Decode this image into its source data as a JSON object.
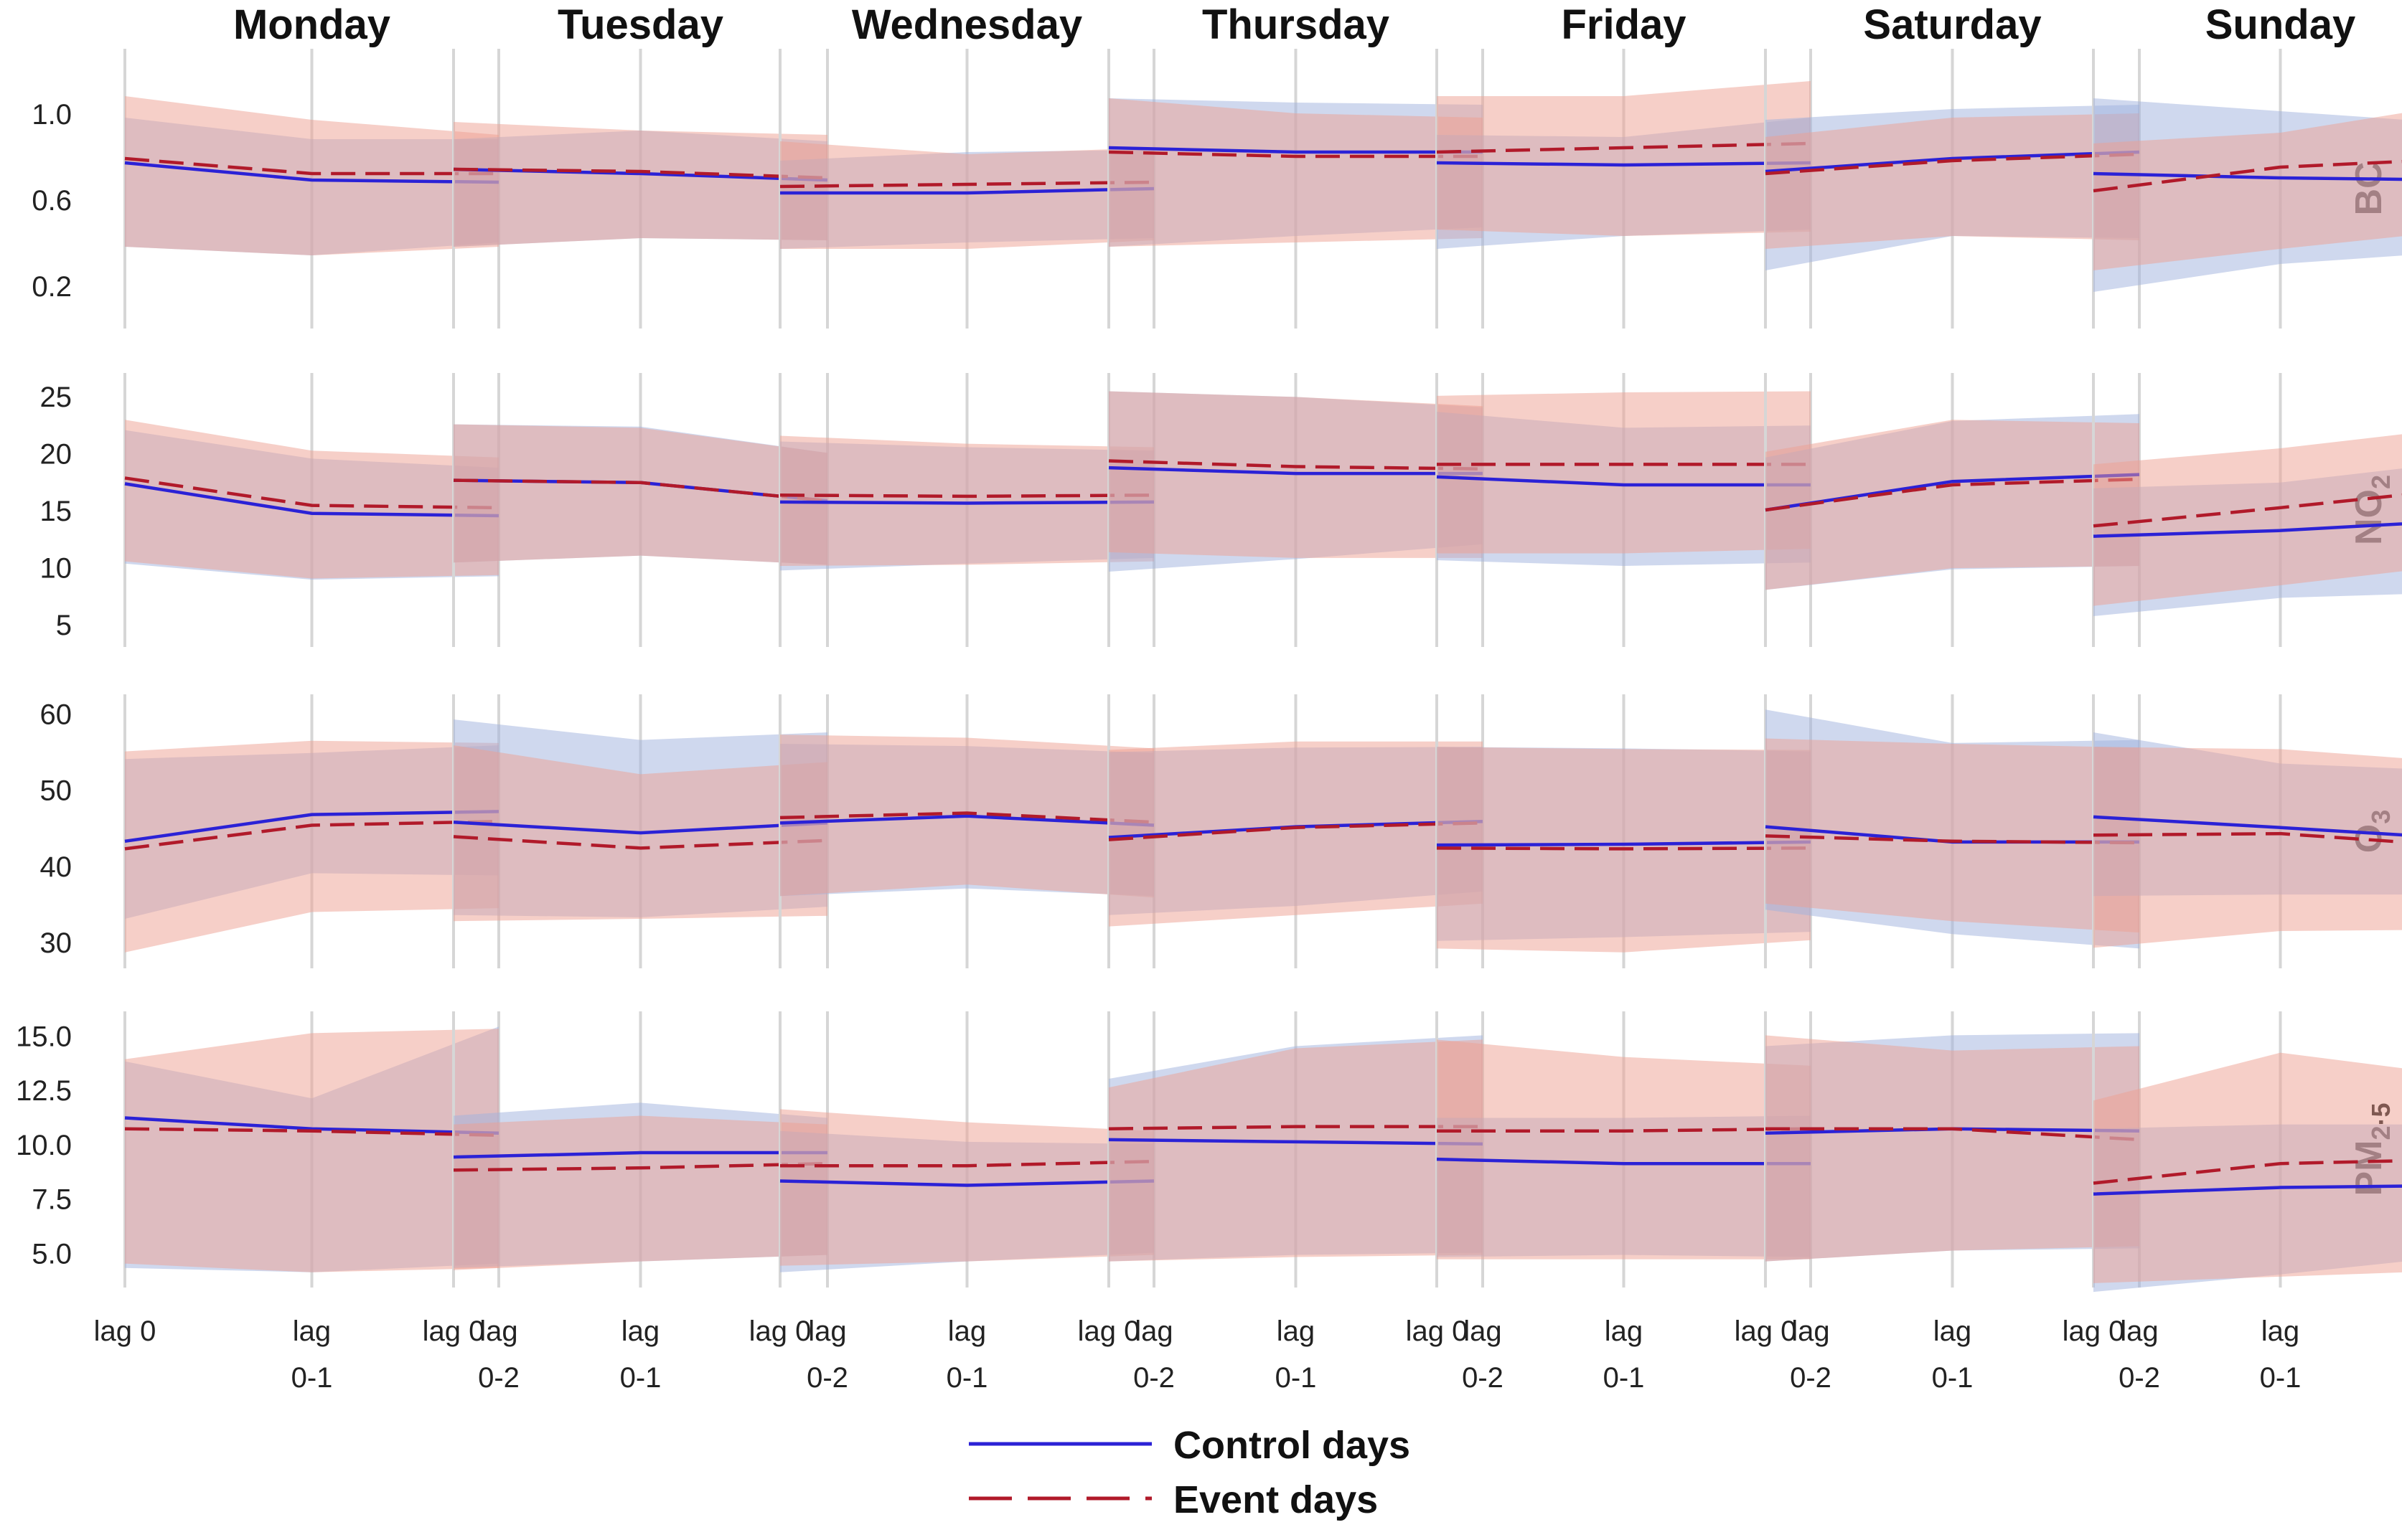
{
  "chart_data": {
    "type": "line",
    "days": [
      "Monday",
      "Tuesday",
      "Wednesday",
      "Thursday",
      "Friday",
      "Saturday",
      "Sunday"
    ],
    "x_ticks": [
      [
        "lag 0"
      ],
      [
        "lag",
        "0-1"
      ],
      [
        "lag",
        "0-2"
      ]
    ],
    "legend_position": "bottom-center",
    "series_names": {
      "control": "Control days",
      "event": "Event days"
    },
    "colors": {
      "control_line": "#2b22d6",
      "event_line": "#b11a2a",
      "control_band": "#9fb1dd",
      "event_band": "#eea091",
      "grid": "#d6d6d6"
    },
    "pollutants": [
      {
        "name": "BC",
        "sub": "",
        "ylim": [
          0.0,
          1.3
        ],
        "ticks": [
          0.2,
          0.6,
          1.0
        ],
        "tick_decimals": 1,
        "days": [
          {
            "control": [
              0.77,
              0.69,
              0.68
            ],
            "control_lo": [
              0.38,
              0.34,
              0.4
            ],
            "control_hi": [
              0.98,
              0.88,
              0.88
            ],
            "event": [
              0.79,
              0.72,
              0.72
            ],
            "event_lo": [
              0.38,
              0.34,
              0.38
            ],
            "event_hi": [
              1.08,
              0.97,
              0.9
            ]
          },
          {
            "control": [
              0.74,
              0.72,
              0.69
            ],
            "control_lo": [
              0.38,
              0.42,
              0.41
            ],
            "control_hi": [
              0.88,
              0.92,
              0.87
            ],
            "event": [
              0.74,
              0.73,
              0.7
            ],
            "event_lo": [
              0.38,
              0.42,
              0.41
            ],
            "event_hi": [
              0.96,
              0.92,
              0.9
            ]
          },
          {
            "control": [
              0.63,
              0.63,
              0.65
            ],
            "control_lo": [
              0.37,
              0.4,
              0.42
            ],
            "control_hi": [
              0.78,
              0.82,
              0.83
            ],
            "event": [
              0.66,
              0.67,
              0.68
            ],
            "event_lo": [
              0.37,
              0.37,
              0.41
            ],
            "event_hi": [
              0.87,
              0.81,
              0.84
            ]
          },
          {
            "control": [
              0.84,
              0.82,
              0.82
            ],
            "control_lo": [
              0.38,
              0.43,
              0.47
            ],
            "control_hi": [
              1.07,
              1.05,
              1.04
            ],
            "event": [
              0.82,
              0.8,
              0.8
            ],
            "event_lo": [
              0.38,
              0.4,
              0.42
            ],
            "event_hi": [
              1.07,
              1.0,
              0.98
            ]
          },
          {
            "control": [
              0.77,
              0.76,
              0.77
            ],
            "control_lo": [
              0.37,
              0.43,
              0.46
            ],
            "control_hi": [
              0.9,
              0.89,
              0.98
            ],
            "event": [
              0.82,
              0.84,
              0.86
            ],
            "event_lo": [
              0.46,
              0.43,
              0.45
            ],
            "event_hi": [
              1.08,
              1.08,
              1.15
            ]
          },
          {
            "control": [
              0.73,
              0.79,
              0.82
            ],
            "control_lo": [
              0.27,
              0.43,
              0.42
            ],
            "control_hi": [
              0.97,
              1.02,
              1.04
            ],
            "event": [
              0.72,
              0.78,
              0.81
            ],
            "event_lo": [
              0.37,
              0.43,
              0.41
            ],
            "event_hi": [
              0.89,
              0.98,
              1.0
            ]
          },
          {
            "control": [
              0.72,
              0.7,
              0.69
            ],
            "control_lo": [
              0.17,
              0.3,
              0.36
            ],
            "control_hi": [
              1.07,
              1.01,
              0.95
            ],
            "event": [
              0.64,
              0.75,
              0.79
            ],
            "event_lo": [
              0.27,
              0.37,
              0.46
            ],
            "event_hi": [
              0.86,
              0.91,
              1.05
            ]
          }
        ]
      },
      {
        "name": "NO",
        "sub": "2",
        "ylim": [
          3,
          27
        ],
        "ticks": [
          5,
          10,
          15,
          20,
          25
        ],
        "tick_decimals": 0,
        "days": [
          {
            "control": [
              17.3,
              14.7,
              14.5
            ],
            "control_lo": [
              10.3,
              8.9,
              9.2
            ],
            "control_hi": [
              22.0,
              19.5,
              18.7
            ],
            "event": [
              17.8,
              15.4,
              15.2
            ],
            "event_lo": [
              10.5,
              9.0,
              9.3
            ],
            "event_hi": [
              22.9,
              20.2,
              19.6
            ]
          },
          {
            "control": [
              17.6,
              17.4,
              15.8
            ],
            "control_lo": [
              10.4,
              11.0,
              10.2
            ],
            "control_hi": [
              22.5,
              22.3,
              20.0
            ],
            "event": [
              17.6,
              17.4,
              15.8
            ],
            "event_lo": [
              10.4,
              11.0,
              10.2
            ],
            "event_hi": [
              22.5,
              22.2,
              20.0
            ]
          },
          {
            "control": [
              15.7,
              15.6,
              15.7
            ],
            "control_lo": [
              9.7,
              10.3,
              10.8
            ],
            "control_hi": [
              21.0,
              20.5,
              20.2
            ],
            "event": [
              16.3,
              16.2,
              16.3
            ],
            "event_lo": [
              10.1,
              10.2,
              10.5
            ],
            "event_hi": [
              21.5,
              20.8,
              20.5
            ]
          },
          {
            "control": [
              18.7,
              18.2,
              18.2
            ],
            "control_lo": [
              9.6,
              10.7,
              12.0
            ],
            "control_hi": [
              25.4,
              24.9,
              24.0
            ],
            "event": [
              19.3,
              18.8,
              18.6
            ],
            "event_lo": [
              11.3,
              10.8,
              10.8
            ],
            "event_hi": [
              25.4,
              24.9,
              24.1
            ]
          },
          {
            "control": [
              17.9,
              17.2,
              17.2
            ],
            "control_lo": [
              10.6,
              10.1,
              10.4
            ],
            "control_hi": [
              23.6,
              22.2,
              22.4
            ],
            "event": [
              19.0,
              19.0,
              19.0
            ],
            "event_lo": [
              11.2,
              11.2,
              11.6
            ],
            "event_hi": [
              25.0,
              25.3,
              25.4
            ]
          },
          {
            "control": [
              15.0,
              17.5,
              18.1
            ],
            "control_lo": [
              8.0,
              9.8,
              10.1
            ],
            "control_hi": [
              19.6,
              22.8,
              23.4
            ],
            "event": [
              15.0,
              17.2,
              17.7
            ],
            "event_lo": [
              8.0,
              9.9,
              10.1
            ],
            "event_hi": [
              20.1,
              22.9,
              22.6
            ]
          },
          {
            "control": [
              12.7,
              13.2,
              14.1
            ],
            "control_lo": [
              5.7,
              7.3,
              7.8
            ],
            "control_hi": [
              16.9,
              17.4,
              19.3
            ],
            "event": [
              13.6,
              15.2,
              16.9
            ],
            "event_lo": [
              6.6,
              8.4,
              10.3
            ],
            "event_hi": [
              19.0,
              20.4,
              22.3
            ]
          }
        ]
      },
      {
        "name": "O",
        "sub": "3",
        "ylim": [
          26.5,
          62.5
        ],
        "ticks": [
          30,
          40,
          50,
          60
        ],
        "tick_decimals": 0,
        "days": [
          {
            "control": [
              43.2,
              46.7,
              47.1
            ],
            "control_lo": [
              33.0,
              39.0,
              38.7
            ],
            "control_hi": [
              54.0,
              54.8,
              55.8
            ],
            "event": [
              42.2,
              45.3,
              45.8
            ],
            "event_lo": [
              28.6,
              33.9,
              34.4
            ],
            "event_hi": [
              55.0,
              56.4,
              56.1
            ]
          },
          {
            "control": [
              45.7,
              44.3,
              45.6
            ],
            "control_lo": [
              33.5,
              33.2,
              34.6
            ],
            "control_hi": [
              59.2,
              56.5,
              57.5
            ],
            "event": [
              43.8,
              42.3,
              43.3
            ],
            "event_lo": [
              32.7,
              33.0,
              33.4
            ],
            "event_hi": [
              55.8,
              52.0,
              53.6
            ]
          },
          {
            "control": [
              45.6,
              46.5,
              45.3
            ],
            "control_lo": [
              36.0,
              37.0,
              36.0
            ],
            "control_hi": [
              56.0,
              55.7,
              54.8
            ],
            "event": [
              46.3,
              46.9,
              45.7
            ],
            "event_lo": [
              36.0,
              37.5,
              35.8
            ],
            "event_hi": [
              57.2,
              56.8,
              55.4
            ]
          },
          {
            "control": [
              43.7,
              45.1,
              45.8
            ],
            "control_lo": [
              33.5,
              34.7,
              36.6
            ],
            "control_hi": [
              54.9,
              55.5,
              55.6
            ],
            "event": [
              43.4,
              45.0,
              45.6
            ],
            "event_lo": [
              32.0,
              33.5,
              35.0
            ],
            "event_hi": [
              55.2,
              56.3,
              56.3
            ]
          },
          {
            "control": [
              42.7,
              42.8,
              43.1
            ],
            "control_lo": [
              30.1,
              30.6,
              31.3
            ],
            "control_hi": [
              55.6,
              55.4,
              55.0
            ],
            "event": [
              42.3,
              42.2,
              42.3
            ],
            "event_lo": [
              29.1,
              28.6,
              30.2
            ],
            "event_hi": [
              55.6,
              55.3,
              55.2
            ]
          },
          {
            "control": [
              45.1,
              43.1,
              43.1
            ],
            "control_lo": [
              34.2,
              31.0,
              29.1
            ],
            "control_hi": [
              60.5,
              56.1,
              56.5
            ],
            "event": [
              43.9,
              43.2,
              43.0
            ],
            "event_lo": [
              35.0,
              32.7,
              31.2
            ],
            "event_hi": [
              56.7,
              56.0,
              55.5
            ]
          },
          {
            "control": [
              46.4,
              45.0,
              43.5
            ],
            "control_lo": [
              36.0,
              36.2,
              36.2
            ],
            "control_hi": [
              57.5,
              53.4,
              52.4
            ],
            "event": [
              44.0,
              44.2,
              42.5
            ],
            "event_lo": [
              29.2,
              31.4,
              31.6
            ],
            "event_hi": [
              55.6,
              55.3,
              53.5
            ]
          }
        ]
      },
      {
        "name": "PM",
        "sub": "2·5",
        "ylim": [
          3.4,
          16.1
        ],
        "ticks": [
          5.0,
          7.5,
          10.0,
          12.5,
          15.0
        ],
        "tick_decimals": 1,
        "days": [
          {
            "control": [
              11.2,
              10.7,
              10.5
            ],
            "control_lo": [
              4.3,
              4.1,
              4.5
            ],
            "control_hi": [
              13.8,
              12.1,
              15.4
            ],
            "event": [
              10.7,
              10.6,
              10.4
            ],
            "event_lo": [
              4.5,
              4.1,
              4.3
            ],
            "event_hi": [
              13.9,
              15.1,
              15.3
            ]
          },
          {
            "control": [
              9.4,
              9.6,
              9.6
            ],
            "control_lo": [
              4.3,
              4.6,
              4.9
            ],
            "control_hi": [
              11.3,
              11.9,
              11.2
            ],
            "event": [
              8.8,
              8.9,
              9.1
            ],
            "event_lo": [
              4.2,
              4.6,
              4.9
            ],
            "event_hi": [
              10.9,
              11.3,
              10.9
            ]
          },
          {
            "control": [
              8.3,
              8.1,
              8.3
            ],
            "control_lo": [
              4.1,
              4.6,
              5.0
            ],
            "control_hi": [
              10.6,
              10.1,
              10.0
            ],
            "event": [
              9.0,
              9.0,
              9.2
            ],
            "event_lo": [
              4.4,
              4.6,
              4.9
            ],
            "event_hi": [
              11.6,
              11.0,
              10.6
            ]
          },
          {
            "control": [
              10.2,
              10.1,
              10.0
            ],
            "control_lo": [
              4.6,
              4.9,
              5.0
            ],
            "control_hi": [
              13.0,
              14.5,
              15.0
            ],
            "event": [
              10.7,
              10.8,
              10.8
            ],
            "event_lo": [
              4.6,
              4.8,
              4.9
            ],
            "event_hi": [
              12.6,
              14.4,
              14.8
            ]
          },
          {
            "control": [
              9.3,
              9.1,
              9.1
            ],
            "control_lo": [
              4.8,
              4.9,
              4.8
            ],
            "control_hi": [
              11.2,
              11.2,
              11.3
            ],
            "event": [
              10.6,
              10.6,
              10.7
            ],
            "event_lo": [
              4.7,
              4.7,
              4.7
            ],
            "event_hi": [
              14.8,
              14.0,
              13.6
            ]
          },
          {
            "control": [
              10.5,
              10.7,
              10.6
            ],
            "control_lo": [
              4.6,
              5.1,
              5.2
            ],
            "control_hi": [
              14.5,
              15.0,
              15.1
            ],
            "event": [
              10.7,
              10.7,
              10.2
            ],
            "event_lo": [
              4.6,
              5.1,
              5.3
            ],
            "event_hi": [
              15.0,
              14.3,
              14.5
            ]
          },
          {
            "control": [
              7.7,
              8.0,
              8.1
            ],
            "control_lo": [
              3.2,
              4.0,
              4.9
            ],
            "control_hi": [
              10.7,
              10.9,
              10.9
            ],
            "event": [
              8.2,
              9.1,
              9.3
            ],
            "event_lo": [
              3.6,
              3.9,
              4.2
            ],
            "event_hi": [
              12.0,
              14.2,
              13.1
            ]
          }
        ]
      }
    ]
  }
}
